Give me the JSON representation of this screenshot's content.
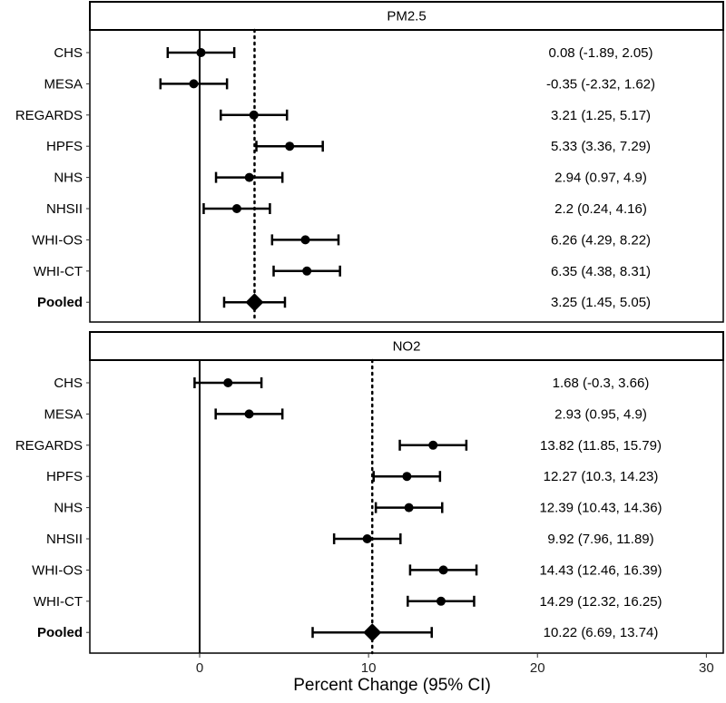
{
  "chart_data": {
    "type": "forest",
    "xlabel": "Percent Change (95% CI)",
    "xlim": [
      -6.5,
      31
    ],
    "xticks": [
      0,
      10,
      20,
      30
    ],
    "xtick_labels": [
      "0",
      "10",
      "20",
      "30"
    ],
    "reference_line": 0,
    "panels": [
      {
        "title": "PM2.5",
        "pooled_line": 3.25,
        "rows": [
          {
            "label": "CHS",
            "est": 0.08,
            "lo": -1.89,
            "hi": 2.05,
            "text": "0.08 (-1.89, 2.05)",
            "pooled": false
          },
          {
            "label": "MESA",
            "est": -0.35,
            "lo": -2.32,
            "hi": 1.62,
            "text": "-0.35 (-2.32, 1.62)",
            "pooled": false
          },
          {
            "label": "REGARDS",
            "est": 3.21,
            "lo": 1.25,
            "hi": 5.17,
            "text": "3.21 (1.25, 5.17)",
            "pooled": false
          },
          {
            "label": "HPFS",
            "est": 5.33,
            "lo": 3.36,
            "hi": 7.29,
            "text": "5.33 (3.36, 7.29)",
            "pooled": false
          },
          {
            "label": "NHS",
            "est": 2.94,
            "lo": 0.97,
            "hi": 4.9,
            "text": "2.94 (0.97, 4.9)",
            "pooled": false
          },
          {
            "label": "NHSII",
            "est": 2.2,
            "lo": 0.24,
            "hi": 4.16,
            "text": "2.2 (0.24, 4.16)",
            "pooled": false
          },
          {
            "label": "WHI-OS",
            "est": 6.26,
            "lo": 4.29,
            "hi": 8.22,
            "text": "6.26 (4.29, 8.22)",
            "pooled": false
          },
          {
            "label": "WHI-CT",
            "est": 6.35,
            "lo": 4.38,
            "hi": 8.31,
            "text": "6.35 (4.38, 8.31)",
            "pooled": false
          },
          {
            "label": "Pooled",
            "est": 3.25,
            "lo": 1.45,
            "hi": 5.05,
            "text": "3.25 (1.45, 5.05)",
            "pooled": true
          }
        ]
      },
      {
        "title": "NO2",
        "pooled_line": 10.22,
        "rows": [
          {
            "label": "CHS",
            "est": 1.68,
            "lo": -0.3,
            "hi": 3.66,
            "text": "1.68 (-0.3, 3.66)",
            "pooled": false
          },
          {
            "label": "MESA",
            "est": 2.93,
            "lo": 0.95,
            "hi": 4.9,
            "text": "2.93 (0.95, 4.9)",
            "pooled": false
          },
          {
            "label": "REGARDS",
            "est": 13.82,
            "lo": 11.85,
            "hi": 15.79,
            "text": "13.82 (11.85, 15.79)",
            "pooled": false
          },
          {
            "label": "HPFS",
            "est": 12.27,
            "lo": 10.3,
            "hi": 14.23,
            "text": "12.27 (10.3, 14.23)",
            "pooled": false
          },
          {
            "label": "NHS",
            "est": 12.39,
            "lo": 10.43,
            "hi": 14.36,
            "text": "12.39 (10.43, 14.36)",
            "pooled": false
          },
          {
            "label": "NHSII",
            "est": 9.92,
            "lo": 7.96,
            "hi": 11.89,
            "text": "9.92 (7.96, 11.89)",
            "pooled": false
          },
          {
            "label": "WHI-OS",
            "est": 14.43,
            "lo": 12.46,
            "hi": 16.39,
            "text": "14.43 (12.46, 16.39)",
            "pooled": false
          },
          {
            "label": "WHI-CT",
            "est": 14.29,
            "lo": 12.32,
            "hi": 16.25,
            "text": "14.29 (12.32, 16.25)",
            "pooled": false
          },
          {
            "label": "Pooled",
            "est": 10.22,
            "lo": 6.69,
            "hi": 13.74,
            "text": "10.22 (6.69, 13.74)",
            "pooled": true
          }
        ]
      }
    ]
  }
}
